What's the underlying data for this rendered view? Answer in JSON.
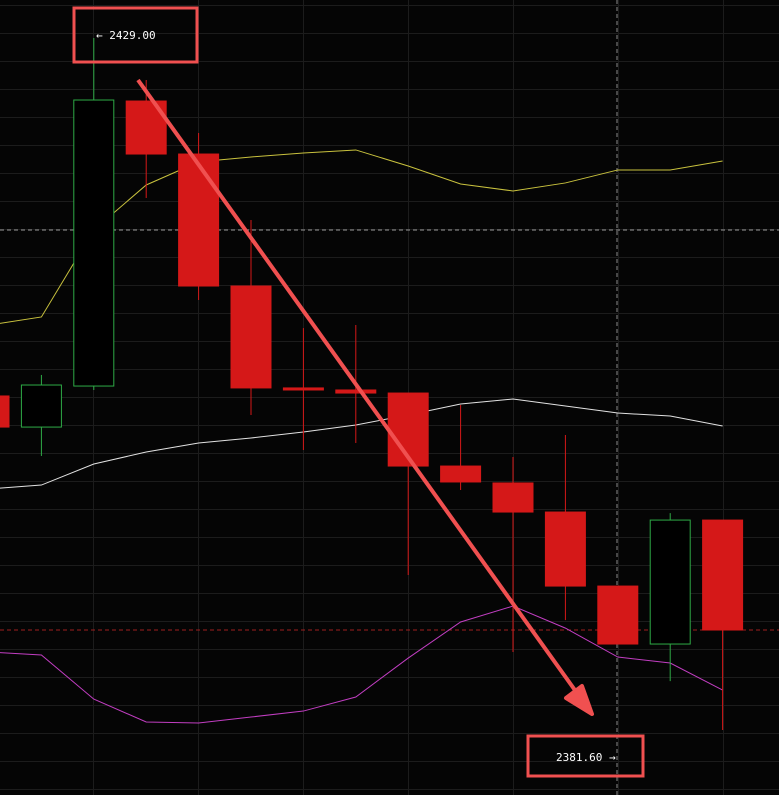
{
  "chart_data": {
    "type": "candlestick",
    "categories": [
      null,
      null,
      null,
      null,
      null,
      null,
      null,
      null,
      null,
      null,
      null,
      null,
      null,
      null,
      null
    ],
    "open": [
      2404.48,
      2402.35,
      2405.16,
      2424.68,
      2421.05,
      2412.01,
      2405.03,
      2404.89,
      2404.68,
      2399.68,
      2398.52,
      2396.53,
      2391.46,
      2387.49,
      2395.98
    ],
    "high": [
      2404.6,
      2405.92,
      2429.0,
      2426.12,
      2422.49,
      2416.53,
      2409.13,
      2409.34,
      2404.68,
      2403.86,
      2400.3,
      2401.81,
      2391.46,
      2396.46,
      2395.98
    ],
    "low": [
      2402.2,
      2400.37,
      2404.89,
      2418.04,
      2411.05,
      2403.18,
      2400.78,
      2401.26,
      2392.22,
      2398.04,
      2386.94,
      2389.13,
      2387.49,
      2384.95,
      2381.6
    ],
    "close": [
      2402.35,
      2405.23,
      2424.75,
      2421.05,
      2412.01,
      2405.03,
      2404.89,
      2404.68,
      2399.68,
      2398.59,
      2396.53,
      2391.46,
      2387.49,
      2395.98,
      2388.45
    ],
    "up_color": "#2eaa46",
    "down_color": "#d51818",
    "bands": [
      {
        "color": "#c9c23e",
        "values": [
          2409.34,
          2409.89,
          2415.85,
          2418.93,
          2420.51,
          2420.85,
          2421.12,
          2421.33,
          2420.23,
          2419.0,
          2418.52,
          2419.07,
          2419.96,
          2419.96,
          2420.57
        ]
      },
      {
        "color": "#e2e2e2",
        "values": [
          2398.11,
          2398.38,
          2399.82,
          2400.64,
          2401.26,
          2401.6,
          2402.01,
          2402.49,
          2403.18,
          2403.93,
          2404.27,
          2403.79,
          2403.31,
          2403.11,
          2402.42
        ]
      },
      {
        "color": "#c23ec2",
        "values": [
          2386.94,
          2386.74,
          2383.72,
          2382.15,
          2382.08,
          2382.49,
          2382.9,
          2383.86,
          2386.53,
          2389.0,
          2390.09,
          2388.58,
          2386.6,
          2386.19,
          2384.34
        ]
      }
    ],
    "ylim": [
      2377.15,
      2431.6
    ],
    "annotations": [
      "← 2429.00",
      "2381.60 →"
    ]
  }
}
